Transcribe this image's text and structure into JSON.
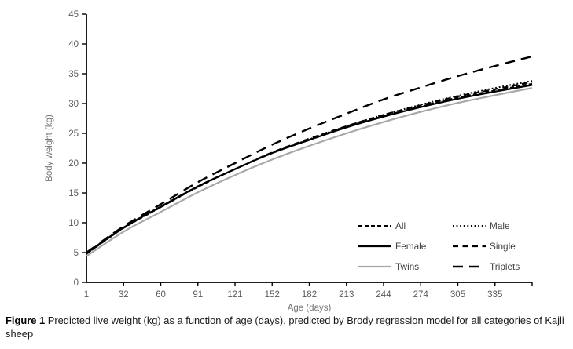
{
  "figure": {
    "caption_label": "Figure 1",
    "caption_text": " Predicted live weight (kg) as a function of age (days), predicted by Brody regression model for all categories of Kajli sheep"
  },
  "chart_data": {
    "type": "line",
    "title": "",
    "xlabel": "Age (days)",
    "ylabel": "Body weight (kg)",
    "x": [
      1,
      32,
      60,
      91,
      121,
      152,
      182,
      213,
      244,
      274,
      305,
      335,
      365
    ],
    "x_tick_labels": [
      "1",
      "32",
      "60",
      "91",
      "121",
      "152",
      "182",
      "213",
      "244",
      "274",
      "305",
      "335"
    ],
    "y_ticks": [
      0,
      5,
      10,
      15,
      20,
      25,
      30,
      35,
      40,
      45
    ],
    "ylim": [
      0,
      45
    ],
    "grid": false,
    "legend_position": "inside-lower-right-two-columns",
    "colors": {
      "black_line": "#000000",
      "gray_line": "#a8a8a8",
      "tick_label": "#5a5a5a",
      "axis_title": "#757575",
      "legend_text": "#3f3f3f",
      "axis_line": "#000000"
    },
    "series": [
      {
        "name": "All",
        "style": "dashed-short",
        "color": "#000000",
        "values": [
          4.8,
          9.1,
          12.6,
          16.0,
          19.0,
          21.7,
          23.9,
          26.1,
          27.9,
          29.5,
          31.0,
          32.2,
          33.3
        ]
      },
      {
        "name": "Male",
        "style": "dotted",
        "color": "#000000",
        "values": [
          4.8,
          9.1,
          12.6,
          16.0,
          19.0,
          21.7,
          24.0,
          26.2,
          28.1,
          29.8,
          31.3,
          32.6,
          33.8
        ]
      },
      {
        "name": "Female",
        "style": "solid",
        "color": "#000000",
        "values": [
          4.9,
          9.2,
          12.7,
          16.1,
          19.0,
          21.7,
          23.9,
          26.0,
          27.8,
          29.4,
          30.8,
          32.0,
          33.1
        ]
      },
      {
        "name": "Single",
        "style": "dashed-medium",
        "color": "#000000",
        "values": [
          4.8,
          9.2,
          12.7,
          16.1,
          19.0,
          21.8,
          24.1,
          26.2,
          28.1,
          29.7,
          31.2,
          32.4,
          33.6
        ]
      },
      {
        "name": "Twins",
        "style": "solid",
        "color": "#a8a8a8",
        "values": [
          4.4,
          8.5,
          11.8,
          15.1,
          18.0,
          20.6,
          22.9,
          25.0,
          26.9,
          28.6,
          30.1,
          31.4,
          32.6
        ]
      },
      {
        "name": "Triplets",
        "style": "dashed-long",
        "color": "#000000",
        "values": [
          5.0,
          9.4,
          13.1,
          16.8,
          20.0,
          23.1,
          25.8,
          28.3,
          30.7,
          32.7,
          34.6,
          36.3,
          37.9
        ]
      }
    ]
  }
}
